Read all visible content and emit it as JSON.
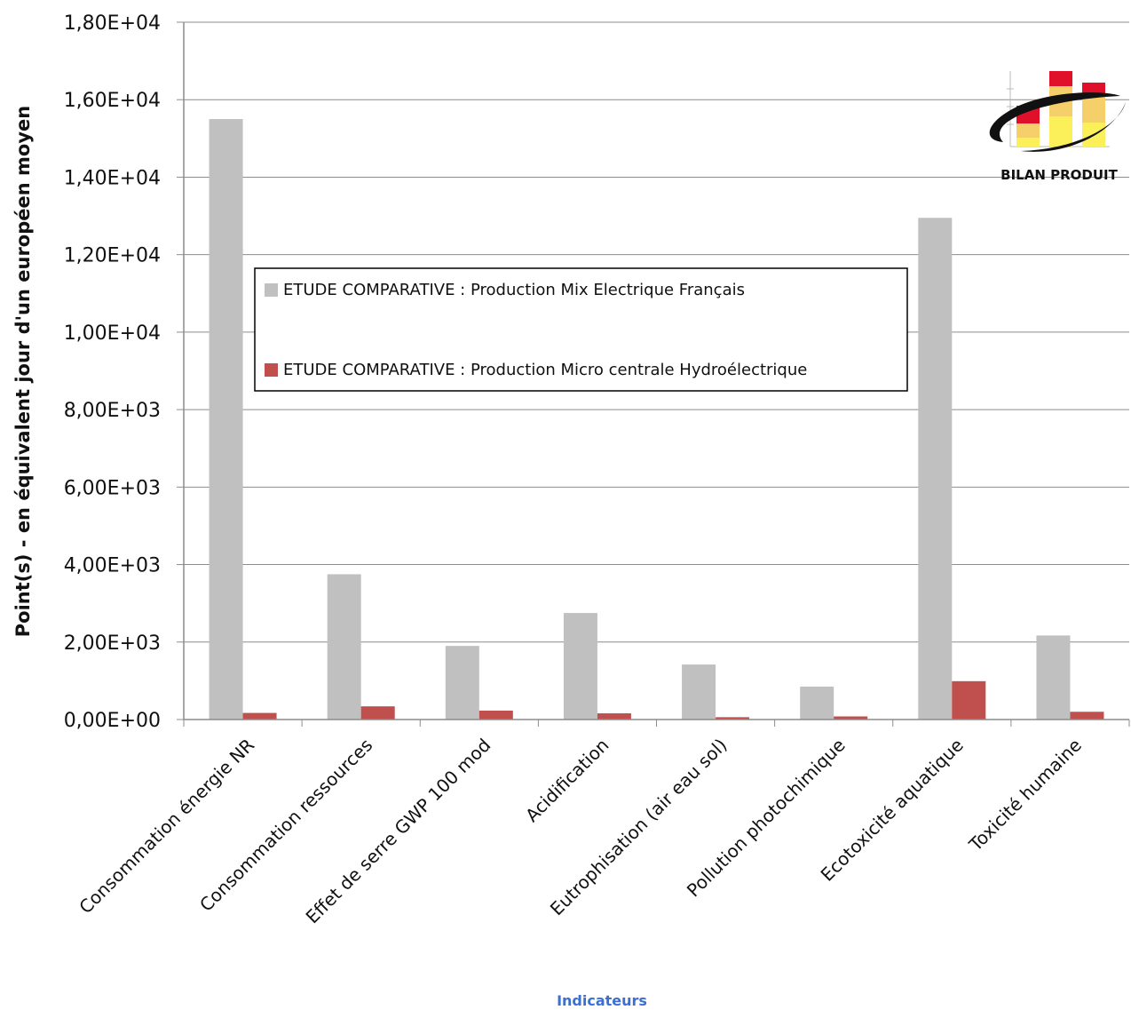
{
  "colors": {
    "series_1": "#c0c0c0",
    "series_2": "#c0504d",
    "xlabel": "#3b6fd4",
    "grid": "#8c8c8c",
    "axis": "#8c8c8c"
  },
  "logo": {
    "text": "BILAN PRODUIT",
    "icon": "stacked-bar-chart-logo-icon"
  },
  "chart_data": {
    "type": "bar",
    "title": "",
    "ylabel": "Point(s)  - en équivalent jour d'un européen moyen",
    "xlabel": "Indicateurs",
    "ylim": [
      0,
      18000
    ],
    "yticks": [
      0,
      2000,
      4000,
      6000,
      8000,
      10000,
      12000,
      14000,
      16000,
      18000
    ],
    "ytick_labels": [
      "0,00E+00",
      "2,00E+03",
      "4,00E+03",
      "6,00E+03",
      "8,00E+03",
      "1,00E+04",
      "1,20E+04",
      "1,40E+04",
      "1,60E+04",
      "1,80E+04"
    ],
    "grid": true,
    "legend_position": "center",
    "categories": [
      "Consommation énergie NR",
      "Consommation ressources",
      "Effet de serre GWP 100 mod",
      "Acidification",
      "Eutrophisation (air eau sol)",
      "Pollution photochimique",
      "Ecotoxicité aquatique",
      "Toxicité humaine"
    ],
    "series": [
      {
        "name": "ETUDE COMPARATIVE : Production Mix Electrique Français",
        "values": [
          15500,
          3750,
          1900,
          2750,
          1420,
          850,
          12950,
          2170
        ]
      },
      {
        "name": "ETUDE COMPARATIVE : Production Micro centrale Hydroélectrique",
        "values": [
          170,
          340,
          230,
          160,
          60,
          80,
          990,
          200
        ]
      }
    ]
  }
}
